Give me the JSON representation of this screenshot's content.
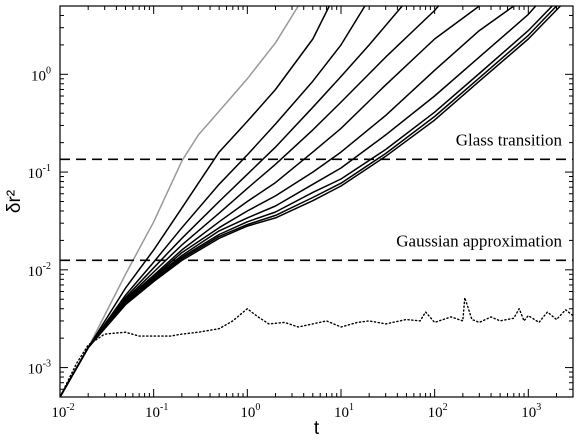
{
  "chart_data": {
    "type": "line",
    "xlabel": "t",
    "ylabel": "δr²",
    "x_scale": "log",
    "y_scale": "log",
    "xlim": [
      0.01,
      3000
    ],
    "ylim": [
      0.0005,
      5
    ],
    "x_ticks": [
      {
        "value": 0.01,
        "base": "10",
        "exp": "-2"
      },
      {
        "value": 0.1,
        "base": "10",
        "exp": "-1"
      },
      {
        "value": 1,
        "base": "10",
        "exp": "0"
      },
      {
        "value": 10,
        "base": "10",
        "exp": "1"
      },
      {
        "value": 100,
        "base": "10",
        "exp": "2"
      },
      {
        "value": 1000,
        "base": "10",
        "exp": "3"
      }
    ],
    "y_ticks": [
      {
        "value": 0.001,
        "base": "10",
        "exp": "-3"
      },
      {
        "value": 0.01,
        "base": "10",
        "exp": "-2"
      },
      {
        "value": 0.1,
        "base": "10",
        "exp": "-1"
      },
      {
        "value": 1,
        "base": "10",
        "exp": "0"
      }
    ],
    "hlines": [
      {
        "y": 0.135,
        "label": "Glass transition"
      },
      {
        "y": 0.0125,
        "label": "Gaussian approximation"
      }
    ],
    "series": [
      {
        "color": "#999999",
        "style": "solid",
        "x": [
          0.01,
          0.02,
          0.05,
          0.1,
          0.2,
          0.3,
          0.5,
          1,
          2,
          3.5
        ],
        "y": [
          0.0005,
          0.0016,
          0.009,
          0.031,
          0.13,
          0.24,
          0.42,
          0.9,
          2.1,
          5
        ]
      },
      {
        "color": "#000000",
        "style": "solid",
        "x": [
          0.01,
          0.02,
          0.05,
          0.1,
          0.2,
          0.5,
          1,
          2,
          5,
          7.5
        ],
        "y": [
          0.0005,
          0.0016,
          0.0065,
          0.016,
          0.043,
          0.16,
          0.33,
          0.7,
          2.3,
          5
        ]
      },
      {
        "color": "#000000",
        "style": "solid",
        "x": [
          0.01,
          0.02,
          0.05,
          0.1,
          0.2,
          0.5,
          1,
          2,
          5,
          10,
          18
        ],
        "y": [
          0.0005,
          0.0016,
          0.0055,
          0.012,
          0.027,
          0.075,
          0.15,
          0.31,
          0.85,
          2.0,
          5
        ]
      },
      {
        "color": "#000000",
        "style": "solid",
        "x": [
          0.01,
          0.02,
          0.05,
          0.1,
          0.2,
          0.5,
          1,
          2,
          5,
          10,
          20,
          45
        ],
        "y": [
          0.0005,
          0.0016,
          0.0052,
          0.0105,
          0.021,
          0.05,
          0.095,
          0.18,
          0.46,
          0.95,
          2.0,
          5
        ]
      },
      {
        "color": "#000000",
        "style": "solid",
        "x": [
          0.01,
          0.02,
          0.05,
          0.1,
          0.2,
          0.5,
          1,
          2,
          5,
          10,
          30,
          100,
          110
        ],
        "y": [
          0.0005,
          0.0016,
          0.005,
          0.0095,
          0.018,
          0.038,
          0.068,
          0.12,
          0.27,
          0.52,
          1.5,
          4.5,
          5
        ]
      },
      {
        "color": "#000000",
        "style": "solid",
        "x": [
          0.01,
          0.02,
          0.05,
          0.1,
          0.2,
          0.5,
          1,
          2,
          5,
          10,
          30,
          100,
          300
        ],
        "y": [
          0.0005,
          0.0016,
          0.0049,
          0.0088,
          0.016,
          0.031,
          0.05,
          0.078,
          0.16,
          0.28,
          0.78,
          2.3,
          5
        ]
      },
      {
        "color": "#000000",
        "style": "solid",
        "x": [
          0.01,
          0.02,
          0.05,
          0.1,
          0.2,
          0.5,
          1,
          2,
          5,
          10,
          30,
          100,
          300,
          700
        ],
        "y": [
          0.0005,
          0.0016,
          0.0048,
          0.0085,
          0.015,
          0.027,
          0.04,
          0.057,
          0.1,
          0.16,
          0.38,
          1.1,
          2.8,
          5
        ]
      },
      {
        "color": "#000000",
        "style": "solid",
        "x": [
          0.01,
          0.02,
          0.05,
          0.1,
          0.2,
          0.5,
          1,
          2,
          5,
          10,
          30,
          100,
          300,
          1000,
          1200
        ],
        "y": [
          0.0005,
          0.0016,
          0.0047,
          0.0083,
          0.014,
          0.025,
          0.034,
          0.045,
          0.075,
          0.11,
          0.24,
          0.6,
          1.5,
          4.1,
          5
        ]
      },
      {
        "color": "#000000",
        "style": "solid",
        "x": [
          0.01,
          0.02,
          0.05,
          0.1,
          0.2,
          0.5,
          1,
          2,
          5,
          10,
          30,
          100,
          300,
          1000,
          1800
        ],
        "y": [
          0.0005,
          0.0016,
          0.0046,
          0.008,
          0.0135,
          0.023,
          0.031,
          0.039,
          0.062,
          0.085,
          0.17,
          0.41,
          1.02,
          2.8,
          5
        ]
      },
      {
        "color": "#000000",
        "style": "solid",
        "x": [
          0.01,
          0.02,
          0.05,
          0.1,
          0.2,
          0.5,
          1,
          2,
          5,
          10,
          30,
          100,
          300,
          1000,
          2000
        ],
        "y": [
          0.0005,
          0.0016,
          0.0045,
          0.0078,
          0.013,
          0.022,
          0.029,
          0.036,
          0.055,
          0.077,
          0.155,
          0.37,
          0.92,
          2.5,
          5
        ]
      },
      {
        "color": "#000000",
        "style": "solid",
        "x": [
          0.01,
          0.02,
          0.05,
          0.1,
          0.2,
          0.5,
          1,
          2,
          5,
          10,
          30,
          100,
          300,
          1000,
          2200
        ],
        "y": [
          0.0005,
          0.0016,
          0.0044,
          0.0076,
          0.0125,
          0.021,
          0.028,
          0.034,
          0.051,
          0.072,
          0.145,
          0.34,
          0.85,
          2.3,
          5
        ]
      },
      {
        "color": "#000000",
        "style": "dotted",
        "x": [
          0.01,
          0.015,
          0.02,
          0.03,
          0.05,
          0.07,
          0.1,
          0.15,
          0.2,
          0.3,
          0.5,
          0.7,
          1,
          1.3,
          1.7,
          2.5,
          3.5,
          5,
          7,
          10,
          15,
          20,
          30,
          50,
          70,
          80,
          100,
          150,
          200,
          210,
          250,
          300,
          400,
          500,
          700,
          800,
          900,
          1000,
          1300,
          1600,
          2000,
          2500,
          3000
        ],
        "y": [
          0.0005,
          0.0011,
          0.0017,
          0.0022,
          0.0023,
          0.0021,
          0.0021,
          0.0021,
          0.0022,
          0.0023,
          0.0025,
          0.003,
          0.004,
          0.0033,
          0.0028,
          0.0029,
          0.0026,
          0.0028,
          0.003,
          0.0026,
          0.0029,
          0.003,
          0.0028,
          0.0031,
          0.003,
          0.0037,
          0.0029,
          0.0033,
          0.003,
          0.0052,
          0.0031,
          0.0029,
          0.0033,
          0.003,
          0.0032,
          0.004,
          0.003,
          0.0034,
          0.0029,
          0.0037,
          0.0031,
          0.0039,
          0.0034
        ]
      }
    ]
  }
}
